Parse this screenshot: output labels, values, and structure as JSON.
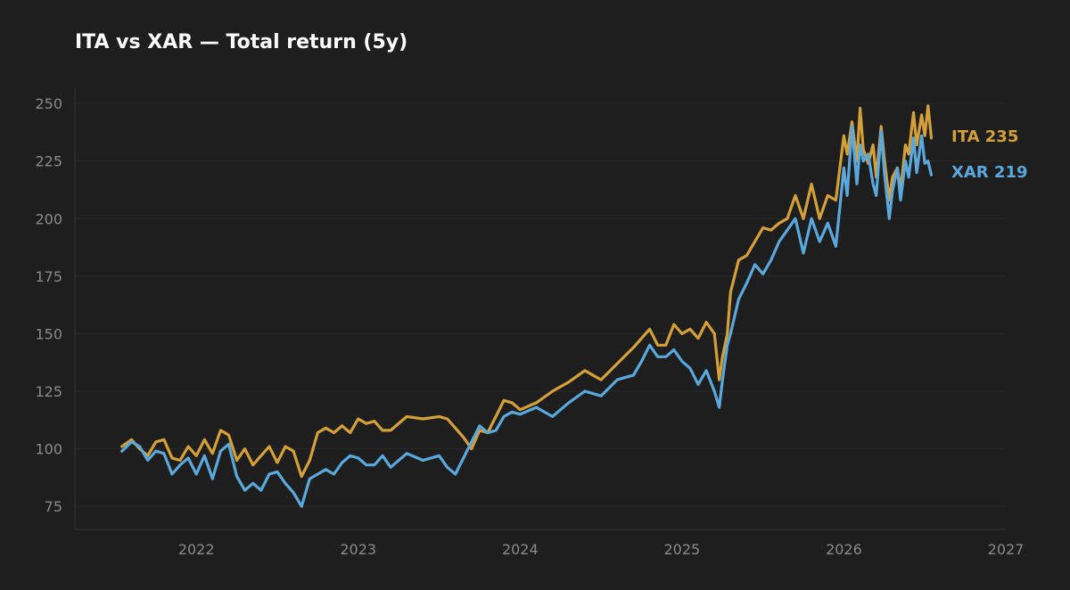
{
  "chart_data": {
    "type": "line",
    "title": "ITA vs XAR — Total return (5y)",
    "xlabel": "",
    "ylabel": "",
    "xlim": [
      2021.25,
      2027.0
    ],
    "ylim": [
      65,
      257
    ],
    "yticks": [
      75,
      100,
      125,
      150,
      175,
      200,
      225,
      250
    ],
    "xticks": [
      2022,
      2023,
      2024,
      2025,
      2026,
      2027
    ],
    "grid": true,
    "legend": "end-of-line labels",
    "series": [
      {
        "name": "ITA",
        "color": "#d4a03a",
        "end_label": "ITA  235",
        "x": [
          2021.54,
          2021.6,
          2021.65,
          2021.7,
          2021.75,
          2021.8,
          2021.85,
          2021.9,
          2021.95,
          2022.0,
          2022.05,
          2022.1,
          2022.15,
          2022.2,
          2022.25,
          2022.3,
          2022.35,
          2022.4,
          2022.45,
          2022.5,
          2022.55,
          2022.6,
          2022.65,
          2022.7,
          2022.75,
          2022.8,
          2022.85,
          2022.9,
          2022.95,
          2023.0,
          2023.05,
          2023.1,
          2023.15,
          2023.2,
          2023.3,
          2023.4,
          2023.5,
          2023.55,
          2023.6,
          2023.65,
          2023.7,
          2023.75,
          2023.8,
          2023.85,
          2023.9,
          2023.95,
          2024.0,
          2024.1,
          2024.2,
          2024.3,
          2024.4,
          2024.5,
          2024.6,
          2024.7,
          2024.75,
          2024.8,
          2024.85,
          2024.9,
          2024.95,
          2025.0,
          2025.05,
          2025.1,
          2025.15,
          2025.2,
          2025.23,
          2025.25,
          2025.28,
          2025.3,
          2025.35,
          2025.4,
          2025.45,
          2025.5,
          2025.55,
          2025.6,
          2025.65,
          2025.7,
          2025.75,
          2025.8,
          2025.85,
          2025.9,
          2025.95,
          2026.0,
          2026.02,
          2026.05,
          2026.08,
          2026.1,
          2026.12,
          2026.15,
          2026.18,
          2026.2,
          2026.23,
          2026.25,
          2026.28,
          2026.3,
          2026.33,
          2026.35,
          2026.38,
          2026.4,
          2026.43,
          2026.45,
          2026.48,
          2026.5,
          2026.52,
          2026.54
        ],
        "values": [
          101,
          104,
          100,
          97,
          103,
          104,
          96,
          95,
          101,
          97,
          104,
          98,
          108,
          106,
          95,
          100,
          93,
          97,
          101,
          94,
          101,
          99,
          88,
          95,
          107,
          109,
          107,
          110,
          107,
          113,
          111,
          112,
          108,
          108,
          114,
          113,
          114,
          113,
          109,
          105,
          100,
          108,
          107,
          114,
          121,
          120,
          117,
          120,
          125,
          129,
          134,
          130,
          137,
          144,
          148,
          152,
          145,
          145,
          154,
          150,
          152,
          148,
          155,
          150,
          130,
          140,
          150,
          168,
          182,
          184,
          190,
          196,
          195,
          198,
          200,
          210,
          200,
          215,
          200,
          210,
          208,
          236,
          228,
          242,
          225,
          248,
          230,
          224,
          232,
          218,
          240,
          226,
          208,
          218,
          222,
          212,
          232,
          228,
          246,
          232,
          245,
          236,
          249,
          235
        ]
      },
      {
        "name": "XAR",
        "color": "#5aa8dc",
        "end_label": "XAR  219",
        "x": [
          2021.54,
          2021.6,
          2021.65,
          2021.7,
          2021.75,
          2021.8,
          2021.85,
          2021.9,
          2021.95,
          2022.0,
          2022.05,
          2022.1,
          2022.15,
          2022.2,
          2022.25,
          2022.3,
          2022.35,
          2022.4,
          2022.45,
          2022.5,
          2022.55,
          2022.6,
          2022.65,
          2022.7,
          2022.75,
          2022.8,
          2022.85,
          2022.9,
          2022.95,
          2023.0,
          2023.05,
          2023.1,
          2023.15,
          2023.2,
          2023.3,
          2023.4,
          2023.5,
          2023.55,
          2023.6,
          2023.65,
          2023.7,
          2023.75,
          2023.8,
          2023.85,
          2023.9,
          2023.95,
          2024.0,
          2024.1,
          2024.2,
          2024.3,
          2024.4,
          2024.5,
          2024.6,
          2024.7,
          2024.75,
          2024.8,
          2024.85,
          2024.9,
          2024.95,
          2025.0,
          2025.05,
          2025.1,
          2025.15,
          2025.2,
          2025.23,
          2025.25,
          2025.28,
          2025.3,
          2025.35,
          2025.4,
          2025.45,
          2025.5,
          2025.55,
          2025.6,
          2025.65,
          2025.7,
          2025.75,
          2025.8,
          2025.85,
          2025.9,
          2025.95,
          2026.0,
          2026.02,
          2026.05,
          2026.08,
          2026.1,
          2026.12,
          2026.15,
          2026.18,
          2026.2,
          2026.23,
          2026.25,
          2026.28,
          2026.3,
          2026.33,
          2026.35,
          2026.38,
          2026.4,
          2026.43,
          2026.45,
          2026.48,
          2026.5,
          2026.52,
          2026.54
        ],
        "values": [
          99,
          103,
          101,
          95,
          99,
          98,
          89,
          93,
          96,
          89,
          97,
          87,
          99,
          102,
          88,
          82,
          85,
          82,
          89,
          90,
          85,
          81,
          75,
          87,
          89,
          91,
          89,
          94,
          97,
          96,
          93,
          93,
          97,
          92,
          98,
          95,
          97,
          92,
          89,
          96,
          103,
          110,
          107,
          108,
          114,
          116,
          115,
          118,
          114,
          120,
          125,
          123,
          130,
          132,
          138,
          145,
          140,
          140,
          143,
          138,
          135,
          128,
          134,
          125,
          118,
          130,
          145,
          150,
          165,
          172,
          180,
          176,
          182,
          190,
          195,
          200,
          185,
          200,
          190,
          198,
          188,
          222,
          210,
          240,
          215,
          232,
          225,
          228,
          215,
          210,
          238,
          220,
          200,
          212,
          222,
          208,
          225,
          218,
          235,
          220,
          236,
          224,
          225,
          219
        ]
      }
    ]
  }
}
